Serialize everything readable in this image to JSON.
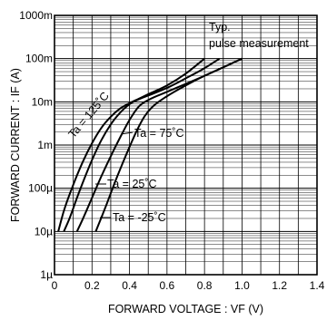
{
  "chart_data": {
    "type": "line",
    "xlabel": "FORWARD VOLTAGE : VF (V)",
    "ylabel": "FORWARD CURRENT : IF (A)",
    "xlim": [
      0,
      1.4
    ],
    "ylim": [
      1e-06,
      1
    ],
    "yscale": "log",
    "grid": true,
    "x_ticks": [
      {
        "value": 0,
        "label": "0"
      },
      {
        "value": 0.2,
        "label": "0.2"
      },
      {
        "value": 0.4,
        "label": "0.4"
      },
      {
        "value": 0.6,
        "label": "0.6"
      },
      {
        "value": 0.8,
        "label": "0.8"
      },
      {
        "value": 1.0,
        "label": "1.0"
      },
      {
        "value": 1.2,
        "label": "1.2"
      },
      {
        "value": 1.4,
        "label": "1.4"
      }
    ],
    "y_ticks": [
      {
        "value": 1e-06,
        "label": "1µ"
      },
      {
        "value": 1e-05,
        "label": "10µ"
      },
      {
        "value": 0.0001,
        "label": "100µ"
      },
      {
        "value": 0.001,
        "label": "1m"
      },
      {
        "value": 0.01,
        "label": "10m"
      },
      {
        "value": 0.1,
        "label": "100m"
      },
      {
        "value": 1,
        "label": "1000m"
      }
    ],
    "annotations": [
      "Typ.",
      "pulse measurement"
    ],
    "series": [
      {
        "name": "Ta = 125˚C",
        "x": [
          0.02,
          0.05,
          0.1,
          0.15,
          0.2,
          0.25,
          0.3,
          0.35,
          0.4,
          0.45,
          0.5,
          0.6,
          0.7,
          0.8
        ],
        "y": [
          1e-05,
          3e-05,
          0.00012,
          0.0004,
          0.0011,
          0.0025,
          0.0045,
          0.007,
          0.0093,
          0.0118,
          0.015,
          0.024,
          0.045,
          0.1
        ]
      },
      {
        "name": "Ta = 75˚C",
        "x": [
          0.05,
          0.08,
          0.12,
          0.16,
          0.2,
          0.25,
          0.3,
          0.35,
          0.4,
          0.45,
          0.5,
          0.6,
          0.7,
          0.8,
          0.88
        ],
        "y": [
          1e-05,
          2e-05,
          6e-05,
          0.00017,
          0.00045,
          0.0013,
          0.003,
          0.0056,
          0.0088,
          0.0115,
          0.014,
          0.021,
          0.035,
          0.06,
          0.1
        ]
      },
      {
        "name": "Ta = 25˚C",
        "x": [
          0.12,
          0.15,
          0.2,
          0.25,
          0.3,
          0.35,
          0.4,
          0.45,
          0.5,
          0.6,
          0.7,
          0.8,
          0.9,
          1.0
        ],
        "y": [
          1e-05,
          1.9e-05,
          6e-05,
          0.00019,
          0.00055,
          0.0015,
          0.0038,
          0.0078,
          0.011,
          0.017,
          0.026,
          0.04,
          0.063,
          0.1
        ]
      },
      {
        "name": "Ta = -25˚C",
        "x": [
          0.22,
          0.25,
          0.28,
          0.32,
          0.36,
          0.4,
          0.44,
          0.48,
          0.52,
          0.6,
          0.7,
          0.8,
          0.9,
          1.0
        ],
        "y": [
          1e-05,
          2.1e-05,
          4.5e-05,
          0.00013,
          0.00035,
          0.0009,
          0.0022,
          0.0046,
          0.0075,
          0.0135,
          0.024,
          0.04,
          0.063,
          0.1
        ]
      }
    ]
  }
}
